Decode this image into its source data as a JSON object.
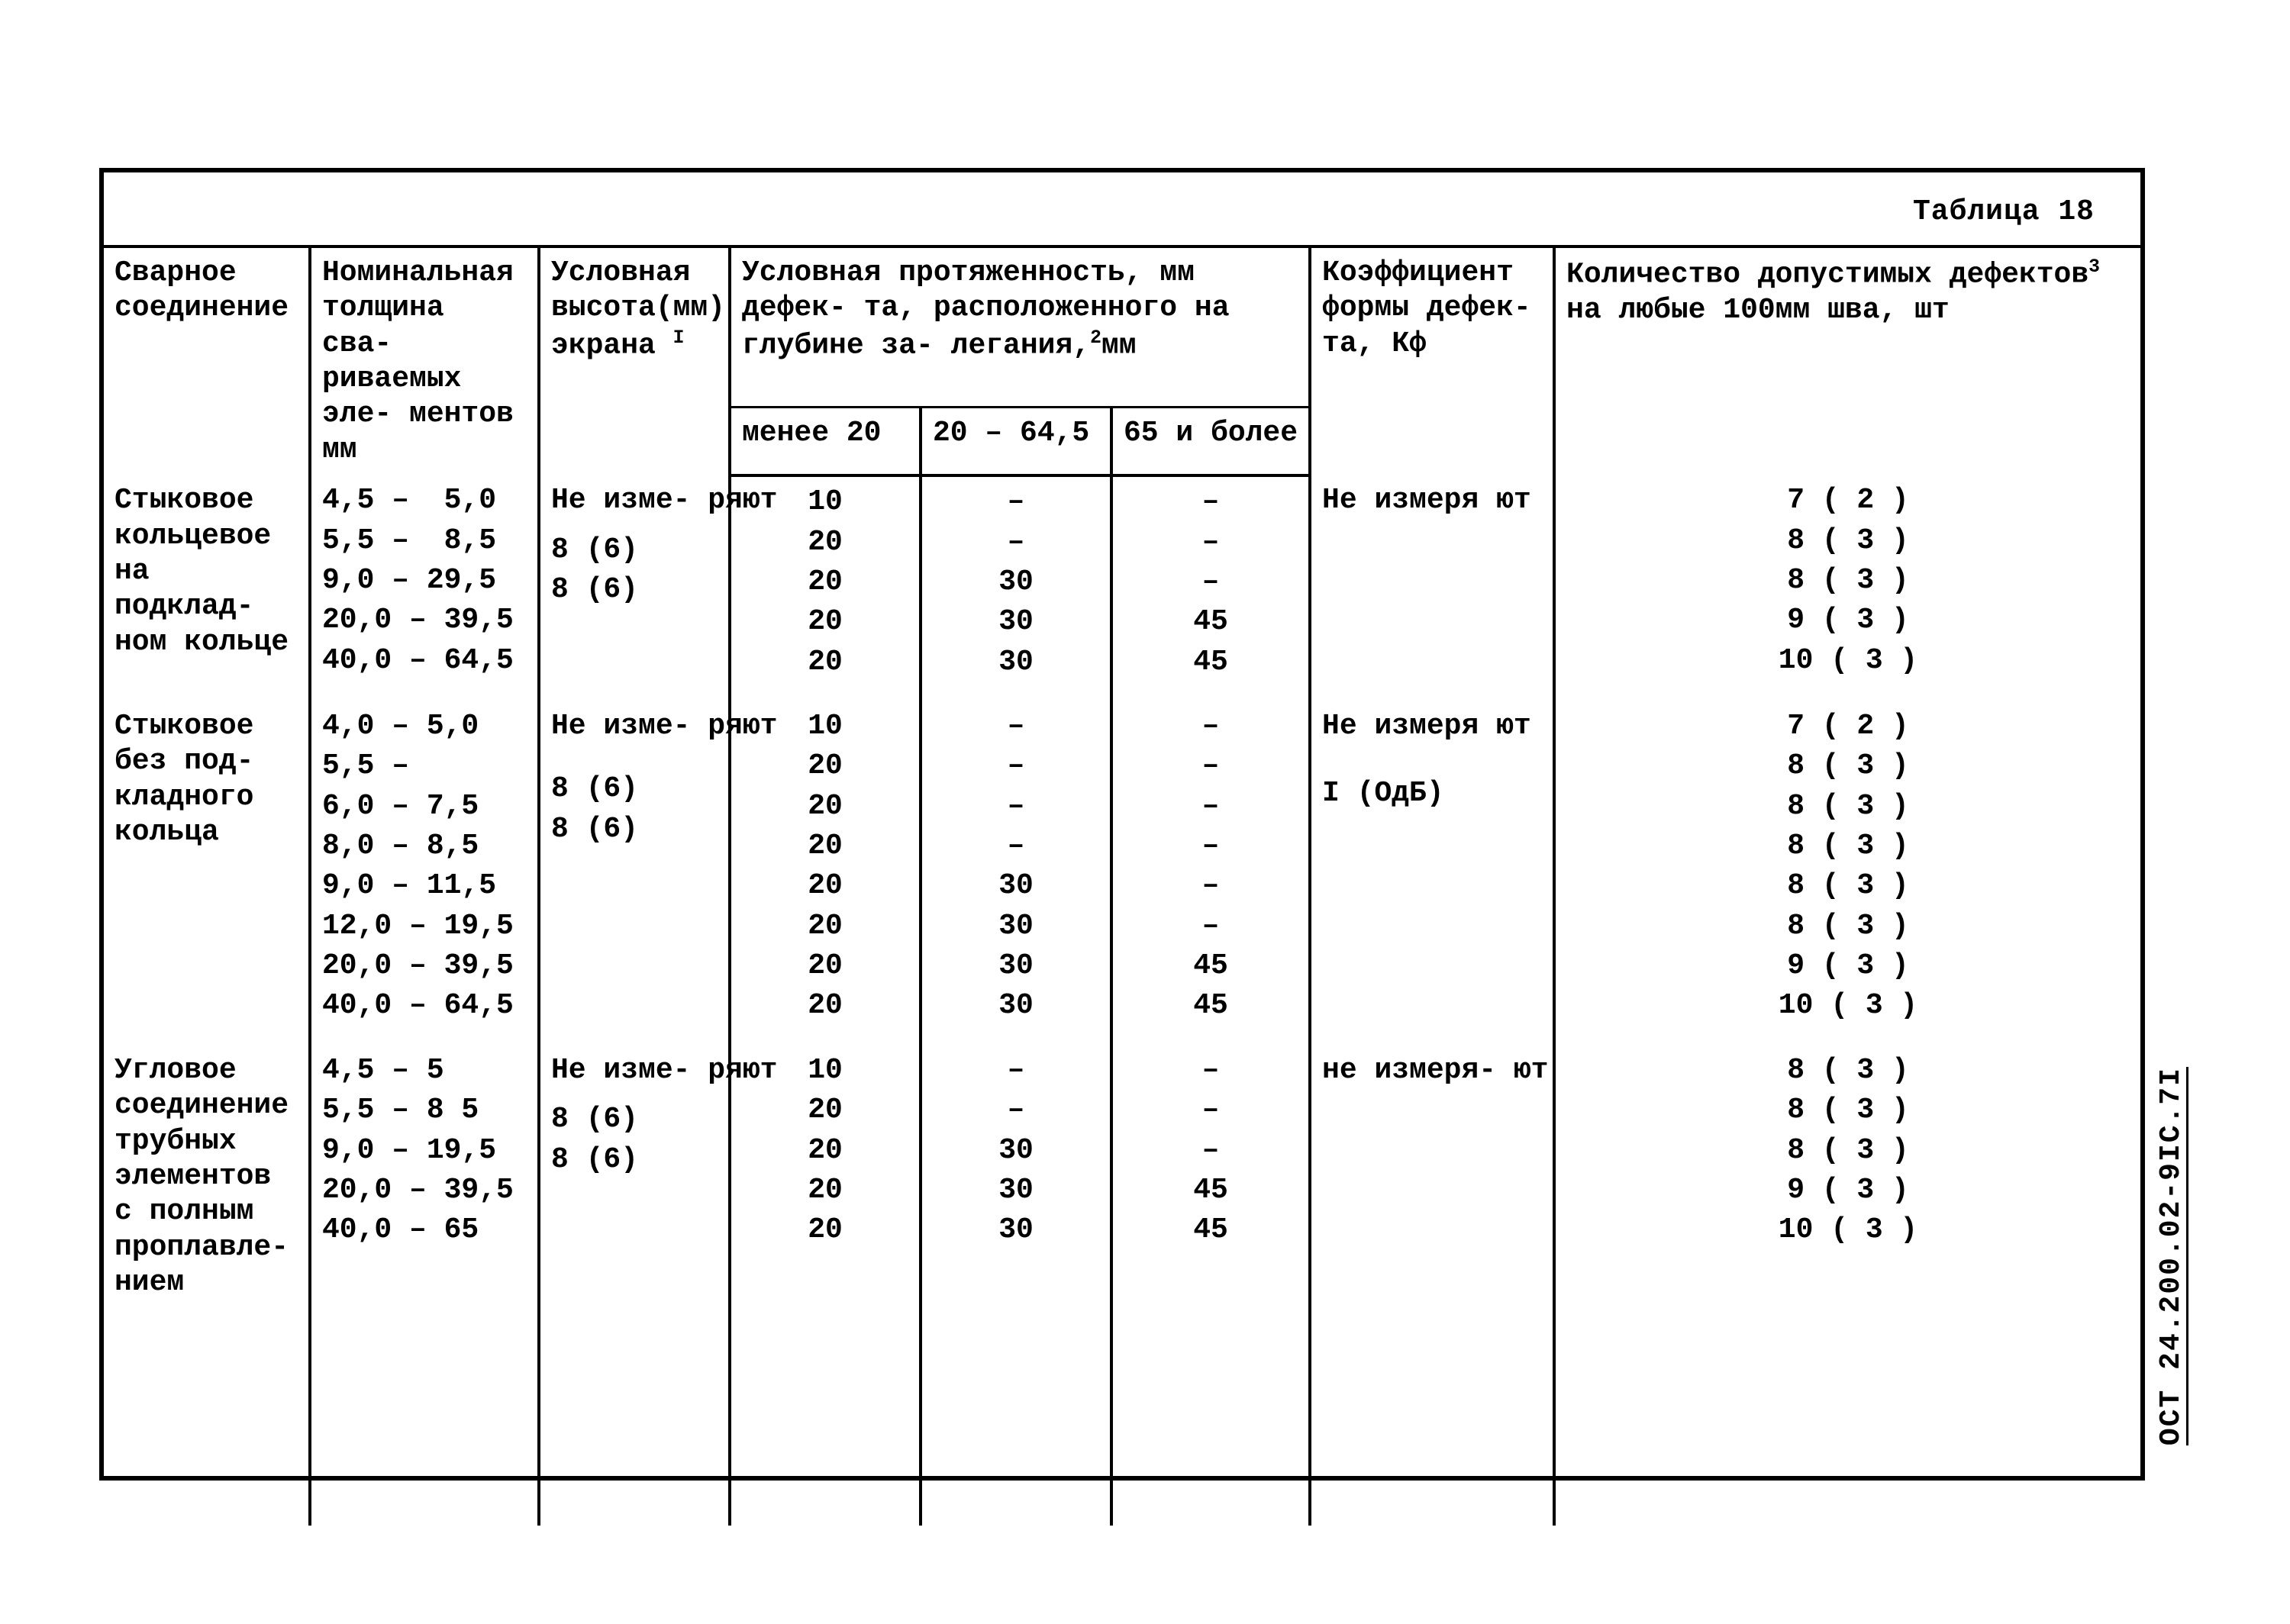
{
  "caption": "Таблица 18",
  "sideCode": "ОСТ 24.200.02-9IС.7I",
  "header": {
    "col1": "Сварное соединение",
    "col2": "Номинальная толщина сва- риваемых эле- ментов  мм",
    "col3_pre": "Условная высота(мм) экрана ",
    "col3_sup": "I",
    "colSpan_pre": "Условная протяженность, мм дефек- та, расположенного на глубине за- легания,",
    "colSpan_sup": "2",
    "colSpan_post": "мм",
    "sub1": "менее 20",
    "sub2": "20 – 64,5",
    "sub3": "65 и более",
    "col7": "Коэффициент формы дефек- та,  Кф",
    "col8_pre": "Количество допустимых дефектов",
    "col8_sup": "3",
    "col8_post": " на любые 100мм шва, шт"
  },
  "groups": [
    {
      "label": "Стыковое кольцевое на подклад- ном кольце",
      "thk": [
        "4,5 –  5,0",
        "5,5 –  8,5",
        "9,0 – 29,5",
        "20,0 – 39,5",
        "40,0 – 64,5"
      ],
      "scr": [
        "Не изме- ряют",
        "",
        "",
        "8 (6)",
        "8 (6)"
      ],
      "d1": [
        "10",
        "20",
        "20",
        "20",
        "20"
      ],
      "d2": [
        "–",
        "–",
        "30",
        "30",
        "30"
      ],
      "d3": [
        "–",
        "–",
        "–",
        "45",
        "45"
      ],
      "kf": [
        "Не измеря ют",
        "",
        "",
        "",
        ""
      ],
      "cnt": [
        "7 ( 2 )",
        "8 ( 3 )",
        "8 ( 3 )",
        "9 ( 3 )",
        "10 ( 3 )"
      ]
    },
    {
      "label": "Стыковое без под- кладного кольца",
      "thk": [
        "4,0 – 5,0",
        "5,5 –",
        "6,0 – 7,5",
        "8,0 – 8,5",
        "9,0 – 11,5",
        "12,0 – 19,5",
        "20,0 – 39,5",
        "40,0 – 64,5"
      ],
      "scr": [
        "Не изме- ряют",
        "",
        "",
        "",
        "",
        "",
        "8 (6)",
        "8 (6)"
      ],
      "d1": [
        "10",
        "20",
        "20",
        "20",
        "20",
        "20",
        "20",
        "20"
      ],
      "d2": [
        "–",
        "–",
        "–",
        "–",
        "30",
        "30",
        "30",
        "30"
      ],
      "d3": [
        "–",
        "–",
        "–",
        "–",
        "–",
        "–",
        "45",
        "45"
      ],
      "kf": [
        "Не измеря ют",
        "",
        "",
        "",
        "",
        "",
        "",
        "I (ОдБ)"
      ],
      "cnt": [
        "7 ( 2 )",
        "8 ( 3 )",
        "8 ( 3 )",
        "8 ( 3 )",
        "8 ( 3 )",
        "8 ( 3 )",
        "9 ( 3 )",
        "10 ( 3 )"
      ]
    },
    {
      "label": "Угловое соединение трубных элементов с полным проплавле- нием",
      "thk": [
        "4,5 – 5",
        "5,5 – 8 5",
        "9,0 – 19,5",
        "20,0 – 39,5",
        "40,0 – 65"
      ],
      "scr": [
        "Не изме- ряют",
        "",
        "",
        "8 (6)",
        "8 (6)"
      ],
      "d1": [
        "10",
        "20",
        "20",
        "20",
        "20"
      ],
      "d2": [
        "–",
        "–",
        "30",
        "30",
        "30"
      ],
      "d3": [
        "–",
        "–",
        "–",
        "45",
        "45"
      ],
      "kf": [
        "не измеря- ют",
        "",
        "",
        "",
        ""
      ],
      "cnt": [
        "8 ( 3 )",
        "8 ( 3 )",
        "8 ( 3 )",
        "9 ( 3 )",
        "10 ( 3 )"
      ]
    }
  ]
}
